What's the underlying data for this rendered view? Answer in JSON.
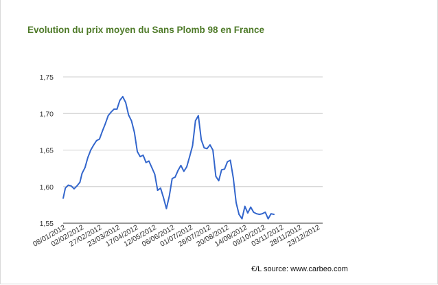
{
  "chart_data": {
    "type": "line",
    "title": "Evolution du prix moyen du Sans Plomb 98 en France",
    "source": "€/L source: www.carbeo.com",
    "ylim": [
      1.55,
      1.75
    ],
    "y_ticks": [
      "1,55",
      "1,60",
      "1,65",
      "1,70",
      "1,75"
    ],
    "x_ticks": [
      "08/01/2012",
      "02/02/2012",
      "27/02/2012",
      "23/03/2012",
      "17/04/2012",
      "12/05/2012",
      "06/06/2012",
      "01/07/2012",
      "26/07/2012",
      "20/08/2012",
      "14/09/2012",
      "09/10/2012",
      "03/11/2012",
      "28/11/2012",
      "23/12/2012"
    ],
    "grid": true,
    "legend": "none",
    "line_color": "#3366cc",
    "x_range": [
      "2012-01-08",
      "2012-12-30"
    ],
    "series": [
      {
        "points": [
          [
            "2012-01-08",
            1.584
          ],
          [
            "2012-01-11",
            1.598
          ],
          [
            "2012-01-15",
            1.602
          ],
          [
            "2012-01-19",
            1.601
          ],
          [
            "2012-01-23",
            1.597
          ],
          [
            "2012-01-27",
            1.601
          ],
          [
            "2012-01-31",
            1.606
          ],
          [
            "2012-02-03",
            1.618
          ],
          [
            "2012-02-07",
            1.626
          ],
          [
            "2012-02-11",
            1.64
          ],
          [
            "2012-02-15",
            1.65
          ],
          [
            "2012-02-19",
            1.657
          ],
          [
            "2012-02-23",
            1.663
          ],
          [
            "2012-02-27",
            1.665
          ],
          [
            "2012-03-02",
            1.676
          ],
          [
            "2012-03-06",
            1.686
          ],
          [
            "2012-03-10",
            1.697
          ],
          [
            "2012-03-14",
            1.702
          ],
          [
            "2012-03-18",
            1.706
          ],
          [
            "2012-03-22",
            1.706
          ],
          [
            "2012-03-26",
            1.718
          ],
          [
            "2012-03-30",
            1.723
          ],
          [
            "2012-04-03",
            1.715
          ],
          [
            "2012-04-07",
            1.698
          ],
          [
            "2012-04-11",
            1.69
          ],
          [
            "2012-04-15",
            1.674
          ],
          [
            "2012-04-19",
            1.648
          ],
          [
            "2012-04-23",
            1.641
          ],
          [
            "2012-04-27",
            1.643
          ],
          [
            "2012-05-01",
            1.633
          ],
          [
            "2012-05-05",
            1.635
          ],
          [
            "2012-05-09",
            1.626
          ],
          [
            "2012-05-13",
            1.617
          ],
          [
            "2012-05-17",
            1.595
          ],
          [
            "2012-05-21",
            1.598
          ],
          [
            "2012-05-25",
            1.585
          ],
          [
            "2012-05-29",
            1.57
          ],
          [
            "2012-06-02",
            1.587
          ],
          [
            "2012-06-06",
            1.611
          ],
          [
            "2012-06-10",
            1.613
          ],
          [
            "2012-06-14",
            1.622
          ],
          [
            "2012-06-18",
            1.629
          ],
          [
            "2012-06-22",
            1.621
          ],
          [
            "2012-06-26",
            1.627
          ],
          [
            "2012-06-30",
            1.641
          ],
          [
            "2012-07-04",
            1.656
          ],
          [
            "2012-07-08",
            1.69
          ],
          [
            "2012-07-12",
            1.697
          ],
          [
            "2012-07-16",
            1.664
          ],
          [
            "2012-07-20",
            1.653
          ],
          [
            "2012-07-24",
            1.652
          ],
          [
            "2012-07-28",
            1.657
          ],
          [
            "2012-08-01",
            1.65
          ],
          [
            "2012-08-05",
            1.614
          ],
          [
            "2012-08-09",
            1.608
          ],
          [
            "2012-08-13",
            1.623
          ],
          [
            "2012-08-17",
            1.624
          ],
          [
            "2012-08-21",
            1.634
          ],
          [
            "2012-08-25",
            1.636
          ],
          [
            "2012-08-29",
            1.612
          ],
          [
            "2012-09-02",
            1.578
          ],
          [
            "2012-09-06",
            1.562
          ],
          [
            "2012-09-10",
            1.556
          ],
          [
            "2012-09-14",
            1.573
          ],
          [
            "2012-09-18",
            1.564
          ],
          [
            "2012-09-22",
            1.572
          ],
          [
            "2012-09-26",
            1.565
          ],
          [
            "2012-09-30",
            1.563
          ],
          [
            "2012-10-04",
            1.562
          ],
          [
            "2012-10-08",
            1.563
          ],
          [
            "2012-10-12",
            1.565
          ],
          [
            "2012-10-16",
            1.556
          ],
          [
            "2012-10-20",
            1.563
          ],
          [
            "2012-10-24",
            1.562
          ]
        ]
      }
    ]
  }
}
